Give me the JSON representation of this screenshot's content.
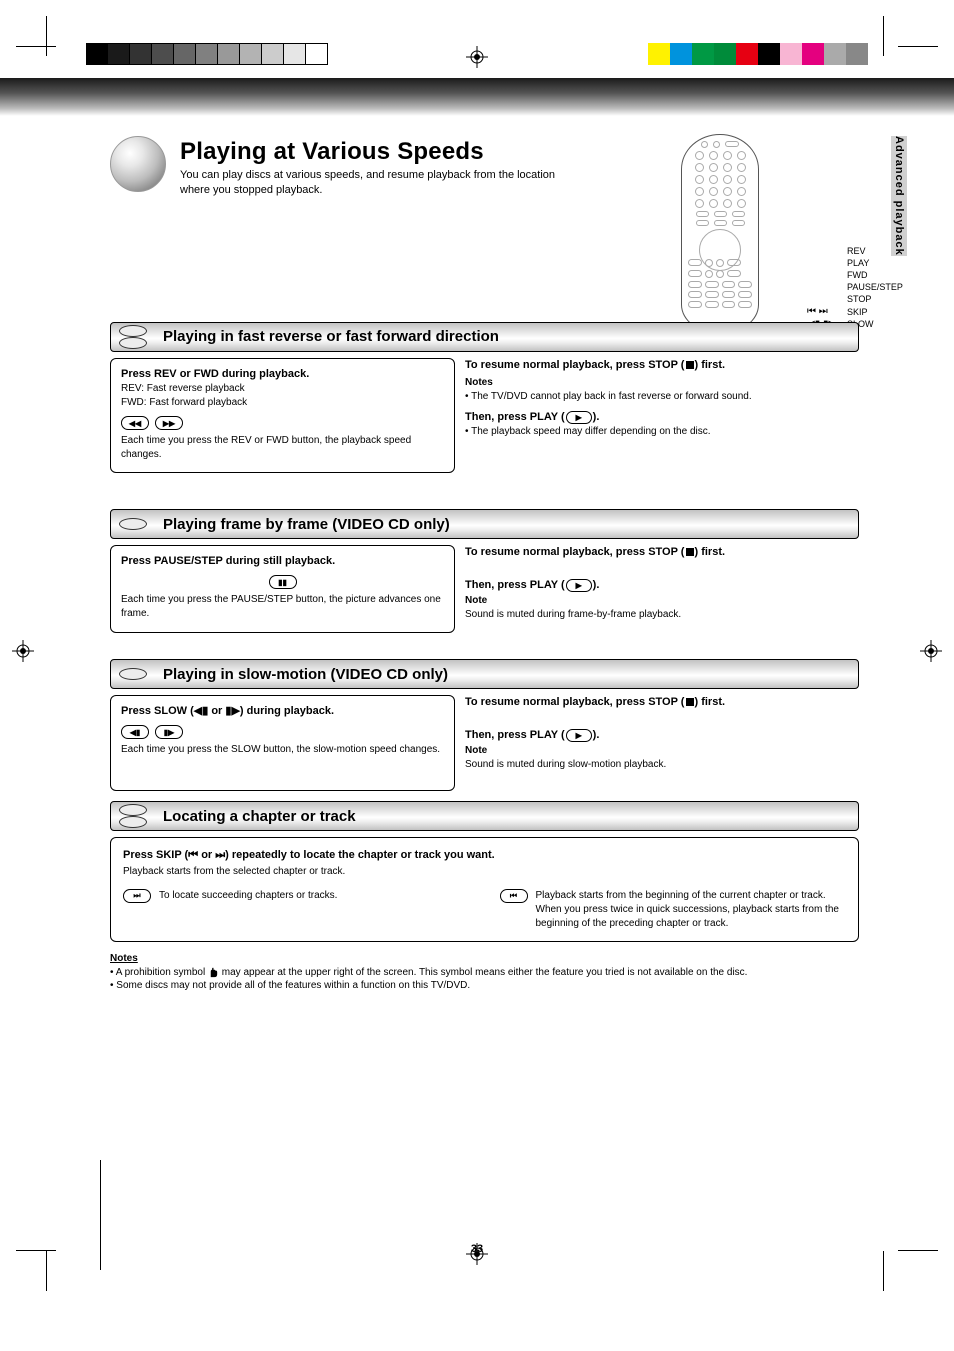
{
  "calibration": {
    "grayscale": [
      "#000000",
      "#1a1a1a",
      "#333333",
      "#4d4d4d",
      "#666666",
      "#808080",
      "#999999",
      "#b3b3b3",
      "#cccccc",
      "#e6e6e6",
      "#ffffff"
    ],
    "colors": [
      "#fff200",
      "#0093dd",
      "#009944",
      "#008b3a",
      "#e60012",
      "#000000",
      "#f8b5d3",
      "#e4007f",
      "#aaaaaa",
      "#888888"
    ]
  },
  "page": {
    "number": "33",
    "side_tab": "Advanced playback"
  },
  "title": {
    "heading": "Playing at Various Speeds",
    "line1": "You can play discs at various speeds, and resume playback from the location",
    "line2": "where you stopped playback."
  },
  "remote_legend": {
    "items": [
      {
        "sym": "REV",
        "label": "REV"
      },
      {
        "sym": "PLAY",
        "label": "PLAY"
      },
      {
        "sym": "FWD",
        "label": "FWD"
      },
      {
        "sym": "PAUSE/STEP",
        "label": "PAUSE/STEP"
      },
      {
        "sym": "STOP",
        "label": "STOP"
      },
      {
        "sym_glyph": "⏮  ⏭",
        "label": "SKIP"
      },
      {
        "sym_glyph": "◀▮  ▮▶",
        "label": "SLOW"
      }
    ]
  },
  "sections": [
    {
      "id": "fast",
      "discs": 2,
      "bar_title": "Playing in fast reverse or fast forward direction",
      "box": {
        "hdr": "Press REV or FWD during playback.",
        "sub1": "REV: Fast reverse playback",
        "sub2": "FWD: Fast forward playback",
        "btn_left": "◀◀",
        "btn_right": "▶▶",
        "post": "Each time you press the REV or FWD button, the playback speed changes."
      },
      "right": {
        "hdr_prefix": "To resume normal playback, press STOP (",
        "hdr_suffix": ") first.",
        "n1": "Notes",
        "line1_a": "• The TV/DVD cannot play back in fast reverse or forward sound.",
        "play_prefix": "Then, press PLAY (",
        "play_suffix": ").",
        "line2": "• The playback speed may differ depending on the disc."
      }
    },
    {
      "id": "still",
      "discs": 1,
      "bar_title": "Playing frame by frame (VIDEO CD only)",
      "box": {
        "hdr": "Press PAUSE/STEP during still playback.",
        "btn": "▮▮",
        "post": "Each time you press the PAUSE/STEP button, the picture advances one frame."
      },
      "right": {
        "hdr": "To resume normal playback, press STOP (",
        "hdr_suffix": ") first.",
        "play_prefix": "Then, press PLAY (",
        "play_suffix": ").",
        "note_h": "Note",
        "note": "Sound is muted during frame-by-frame playback."
      }
    },
    {
      "id": "slow",
      "discs": 1,
      "bar_title": "Playing in slow-motion (VIDEO CD only)",
      "box": {
        "hdr_a": "Press SLOW (",
        "hdr_b": " or ",
        "hdr_c": ") during playback.",
        "btn_left": "◀▮",
        "btn_right": "▮▶",
        "post": "Each time you press the SLOW button, the slow-motion speed changes."
      },
      "right": {
        "hdr": "To resume normal playback, press STOP (",
        "hdr_suffix": ") first.",
        "play_prefix": "Then, press PLAY (",
        "play_suffix": ").",
        "note_h": "Note",
        "note": "Sound is muted during slow-motion playback."
      }
    },
    {
      "id": "chapter",
      "discs": 2,
      "bar_title": "Locating a chapter or track",
      "box": {
        "hdr_a": "Press SKIP (",
        "hdr_b": " or ",
        "hdr_c": ") repeatedly to locate the chapter or track you want.",
        "post": "Playback starts from the selected chapter or track.",
        "right_btn": "⏭",
        "right_lbl": "To locate succeeding chapters or tracks.",
        "left_btn": "⏮",
        "left_lbl_a": "Playback starts from the beginning of the current chapter or track.",
        "left_lbl_b": "When you press twice in quick successions, playback starts from the beginning of the preceding chapter or track."
      }
    }
  ],
  "notes": {
    "h": "Notes",
    "line1_a": "• A prohibition symbol  ",
    "line1_b": "  may appear at the upper right of the screen. This symbol means either the feature you tried is not available on the disc.",
    "line2": "• Some discs may not provide all of the features within a function on this TV/DVD."
  }
}
